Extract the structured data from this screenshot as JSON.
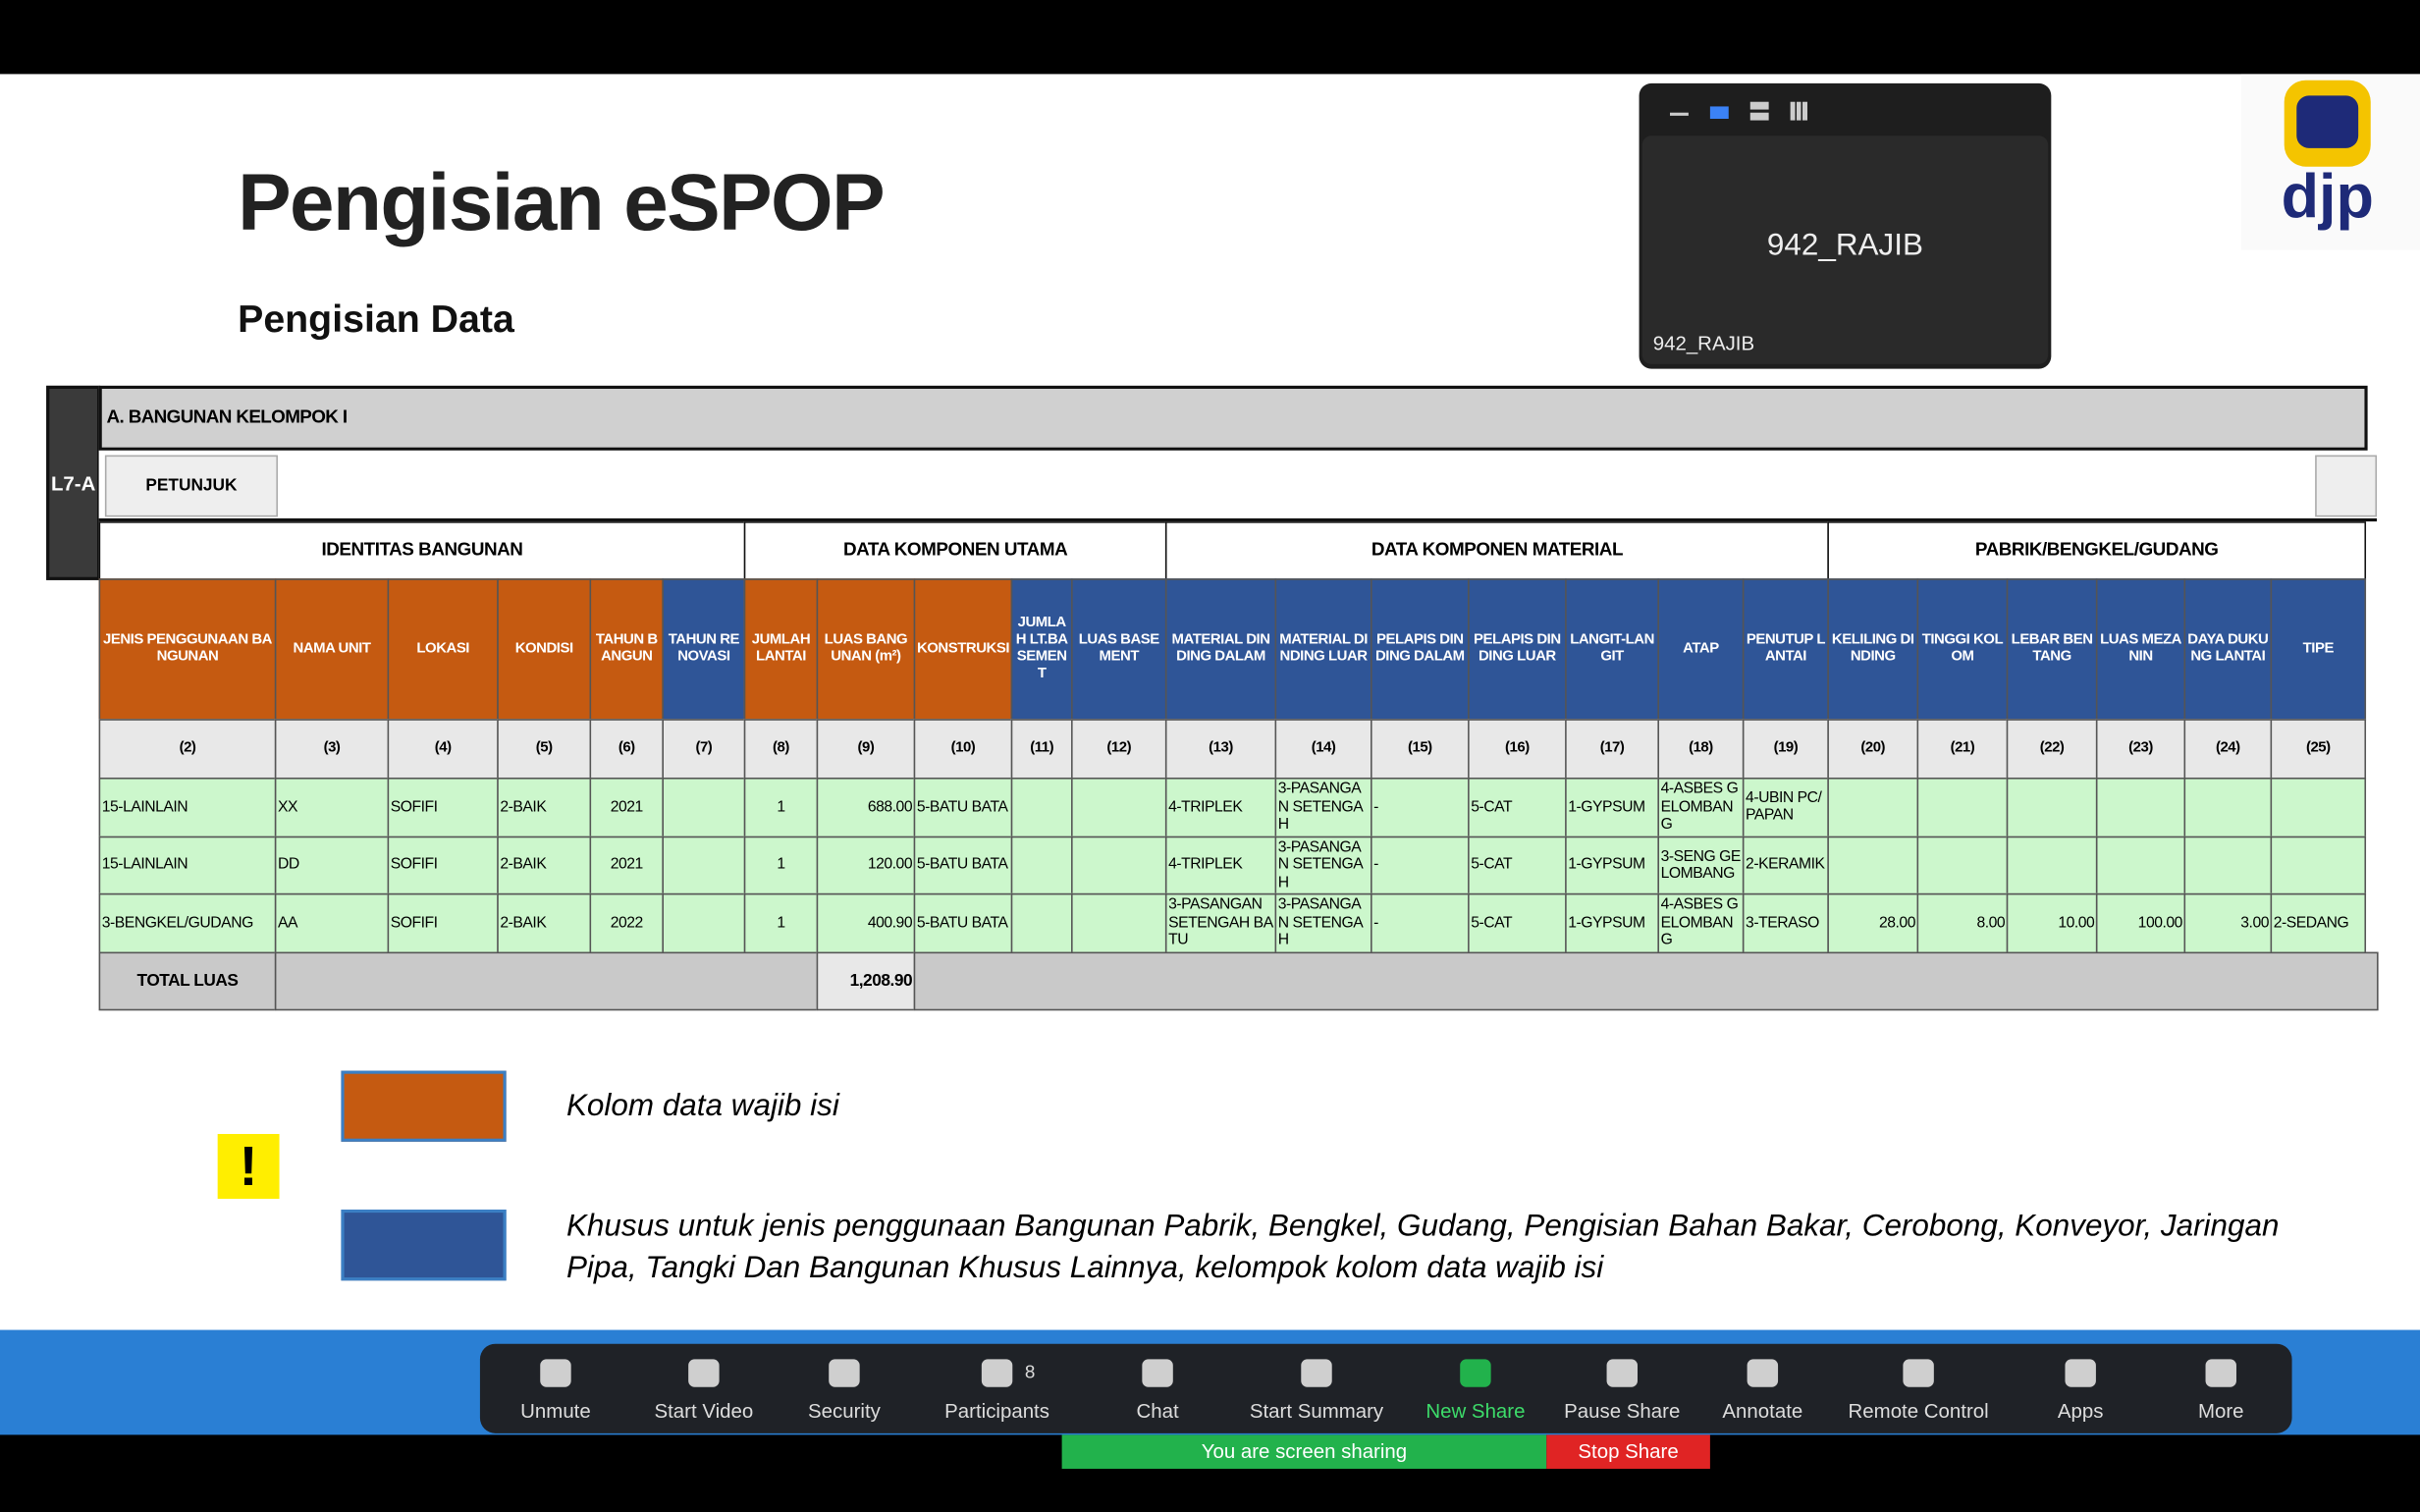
{
  "header": {
    "title": "Pengisian eSPOP",
    "subtitle": "Pengisian Data",
    "logo": "djp"
  },
  "video_tile": {
    "name": "942_RAJIB",
    "label": "942_RAJIB"
  },
  "sheet": {
    "side_label": "L7-A",
    "section": "A. BANGUNAN KELOMPOK I",
    "button": "PETUNJUK",
    "groups": [
      "IDENTITAS BANGUNAN",
      "DATA KOMPONEN UTAMA",
      "DATA KOMPONEN MATERIAL",
      "PABRIK/BENGKEL/GUDANG"
    ],
    "columns": [
      "JENIS PENGGUNAAN BANGUNAN",
      "NAMA UNIT",
      "LOKASI",
      "KONDISI",
      "TAHUN BANGUN",
      "TAHUN RENOVASI",
      "JUMLAH LANTAI",
      "LUAS BANGUNAN (m²)",
      "KONSTRUKSI",
      "JUMLAH LT.BASEMENT",
      "LUAS BASEMENT",
      "MATERIAL DINDING DALAM",
      "MATERIAL DINDING LUAR",
      "PELAPIS DINDING DALAM",
      "PELAPIS DINDING LUAR",
      "LANGIT-LANGIT",
      "ATAP",
      "PENUTUP LANTAI",
      "KELILING DINDING",
      "TINGGI KOLOM",
      "LEBAR BENTANG",
      "LUAS MEZANIN",
      "DAYA DUKUNG LANTAI",
      "TIPE"
    ],
    "numbers": [
      "(2)",
      "(3)",
      "(4)",
      "(5)",
      "(6)",
      "(7)",
      "(8)",
      "(9)",
      "(10)",
      "(11)",
      "(12)",
      "(13)",
      "(14)",
      "(15)",
      "(16)",
      "(17)",
      "(18)",
      "(19)",
      "(20)",
      "(21)",
      "(22)",
      "(23)",
      "(24)",
      "(25)"
    ],
    "rows": [
      [
        "15-LAINLAIN",
        "XX",
        "SOFIFI",
        "2-BAIK",
        "2021",
        null,
        "1",
        "688.00",
        "5-BATU BATA",
        null,
        null,
        "4-TRIPLEK",
        "3-PASANGAN SETENGAH",
        "-",
        "5-CAT",
        "1-GYPSUM",
        "4-ASBES GELOMBANG",
        "4-UBIN PC/PAPAN",
        null,
        null,
        null,
        null,
        null,
        null
      ],
      [
        "15-LAINLAIN",
        "DD",
        "SOFIFI",
        "2-BAIK",
        "2021",
        null,
        "1",
        "120.00",
        "5-BATU BATA",
        null,
        null,
        "4-TRIPLEK",
        "3-PASANGAN SETENGAH",
        "-",
        "5-CAT",
        "1-GYPSUM",
        "3-SENG GELOMBANG",
        "2-KERAMIK",
        null,
        null,
        null,
        null,
        null,
        null
      ],
      [
        "3-BENGKEL/GUDANG",
        "AA",
        "SOFIFI",
        "2-BAIK",
        "2022",
        null,
        "1",
        "400.90",
        "5-BATU BATA",
        null,
        null,
        "3-PASANGAN SETENGAH BATU",
        "3-PASANGAN SETENGAH",
        "-",
        "5-CAT",
        "1-GYPSUM",
        "4-ASBES GELOMBANG",
        "3-TERASO",
        "28.00",
        "8.00",
        "10.00",
        "100.00",
        "3.00",
        "2-SEDANG"
      ]
    ],
    "total_label": "TOTAL LUAS",
    "total_value": "1,208.90"
  },
  "legend": {
    "orange": "Kolom data wajib isi",
    "blue": "Khusus untuk jenis penggunaan Bangunan Pabrik, Bengkel, Gudang, Pengisian Bahan Bakar, Cerobong, Konveyor, Jaringan Pipa, Tangki Dan Bangunan Khusus Lainnya, kelompok kolom data wajib isi"
  },
  "toolbar": {
    "items": [
      "Unmute",
      "Start Video",
      "Security",
      "Participants",
      "Chat",
      "Start Summary",
      "New Share",
      "Pause Share",
      "Annotate",
      "Remote Control",
      "Apps",
      "More"
    ],
    "participant_count": "8",
    "sharing_status": "You are screen sharing",
    "stop": "Stop Share"
  }
}
